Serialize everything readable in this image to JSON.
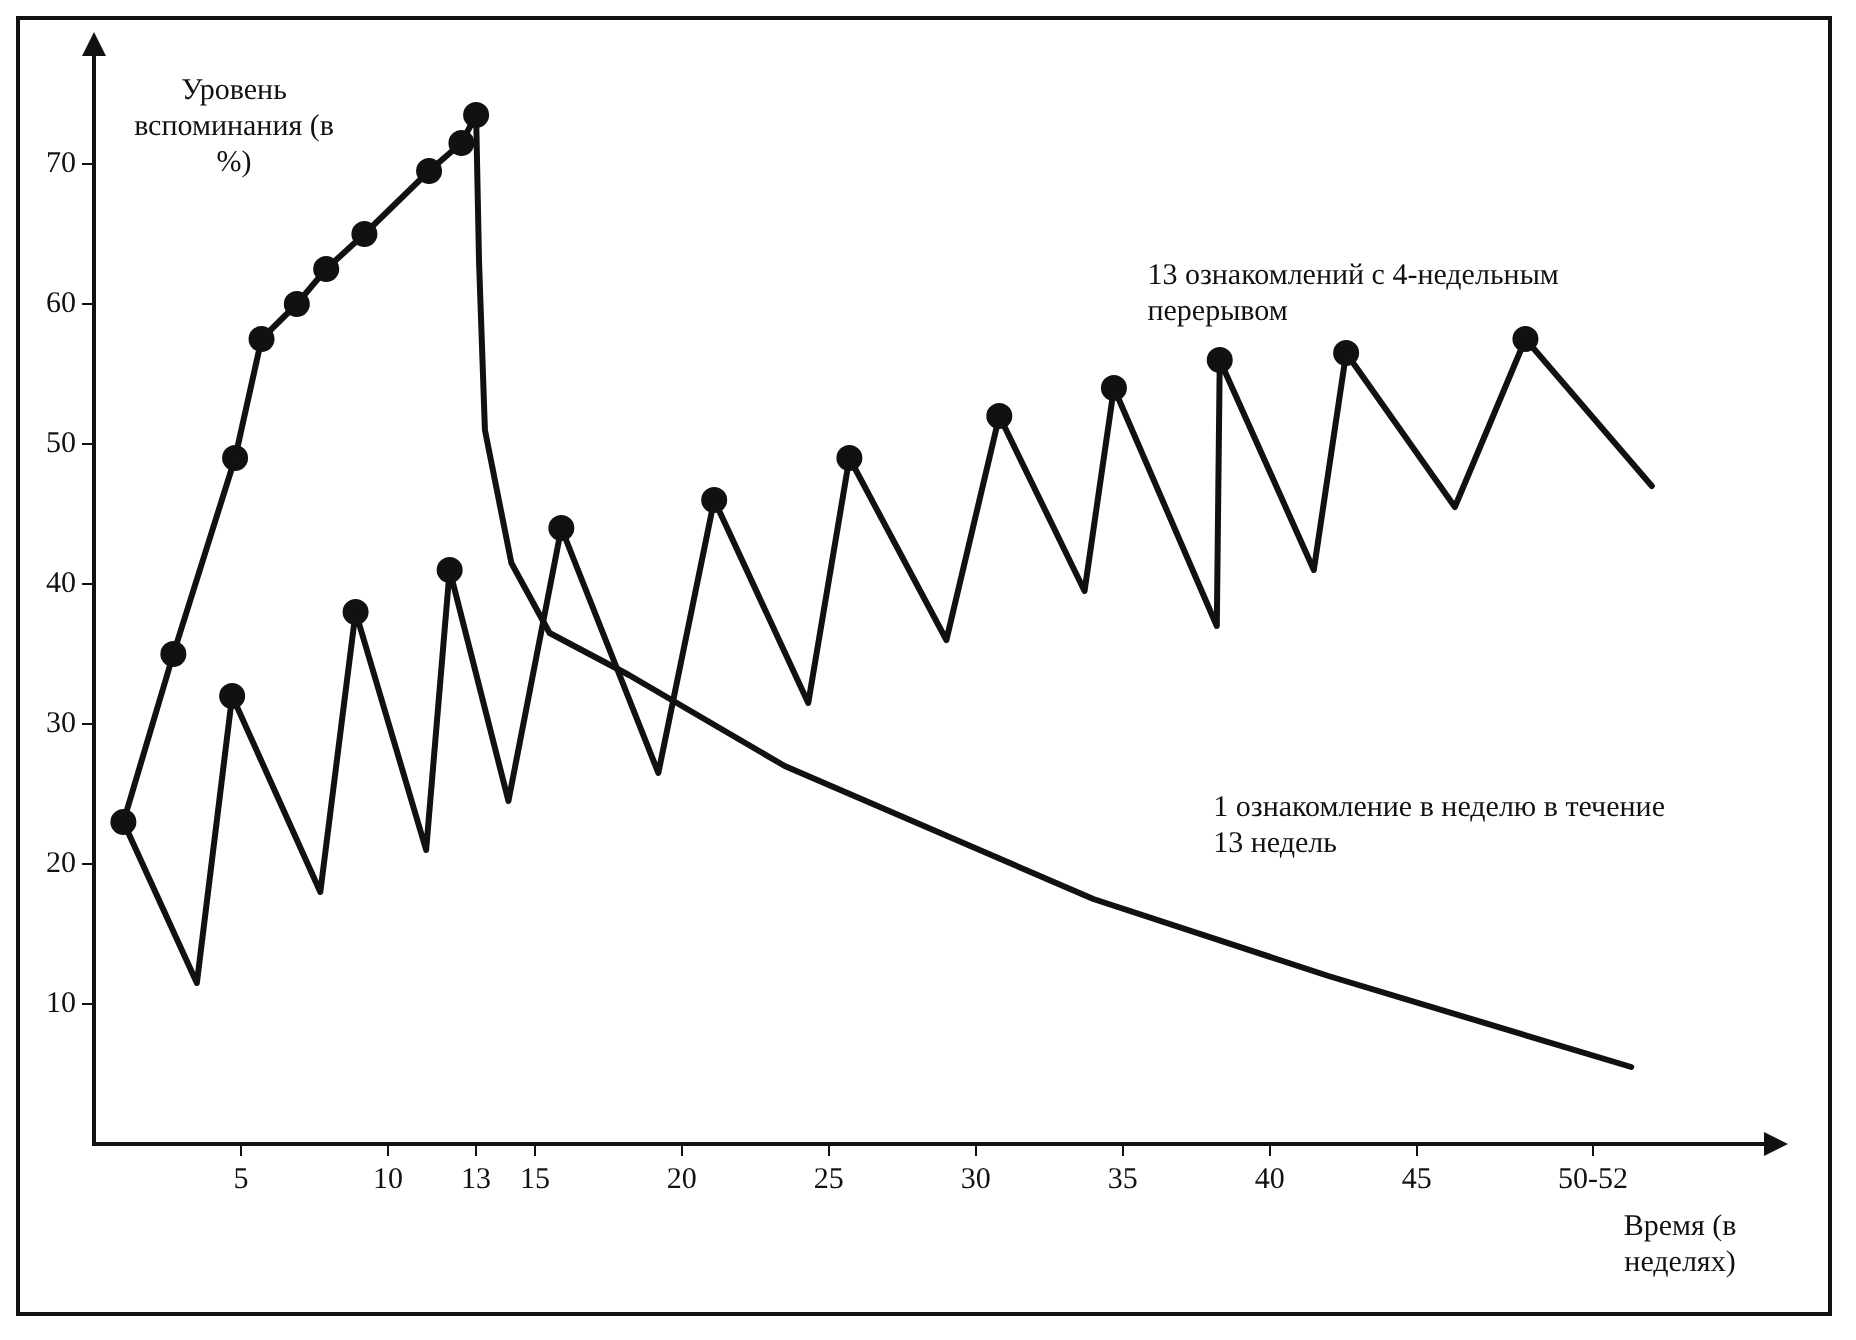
{
  "chart_data": {
    "type": "line",
    "xlabel": "Время (в неделях)",
    "ylabel": "Уровень вспоминания (в %)",
    "xlim": [
      0,
      56
    ],
    "ylim": [
      0,
      76
    ],
    "xticks": [
      5,
      10,
      13,
      15,
      20,
      25,
      30,
      35,
      40,
      45,
      {
        "value": 51,
        "label": "50-52"
      }
    ],
    "yticks": [
      10,
      20,
      30,
      40,
      50,
      60,
      70
    ],
    "grid": false,
    "legend": false,
    "series": [
      {
        "name": "13 ознакомлений с 4-недельным перерывом",
        "type": "line",
        "marker": "none",
        "color": "#111111",
        "x": [
          1,
          3.5,
          4.7,
          7.7,
          8.9,
          11.3,
          12.1,
          14.1,
          15.9,
          19.2,
          21.1,
          24.3,
          25.7,
          29,
          30.8,
          33.7,
          34.7,
          38.2,
          38.3,
          41.5,
          42.6,
          46.3,
          48.7,
          53
        ],
        "values": [
          23,
          11.5,
          32,
          18,
          38,
          21,
          41,
          24.5,
          44,
          26.5,
          46,
          31.5,
          49,
          36,
          52,
          39.5,
          54,
          37,
          56,
          41,
          56.5,
          45.5,
          57.5,
          47
        ]
      },
      {
        "type": "scatter",
        "marker": "circle",
        "color": "#111111",
        "x": [
          4.7,
          8.9,
          12.1,
          15.9,
          21.1,
          25.7,
          30.8,
          34.7,
          38.3,
          42.6,
          48.7
        ],
        "values": [
          32,
          38,
          41,
          44,
          46,
          49,
          52,
          54,
          56,
          56.5,
          57.5
        ]
      },
      {
        "name": "1 ознакомление в неделю в течение 13 недель",
        "type": "line",
        "marker": "none",
        "color": "#111111",
        "x": [
          1,
          2.7,
          4.8,
          5.7,
          6.9,
          7.9,
          9.2,
          11.4,
          12.5,
          13,
          13.1,
          13.3,
          14.2,
          15.5,
          18.2,
          23.5,
          34,
          42,
          52.3
        ],
        "values": [
          23,
          35,
          49,
          57.5,
          60,
          62.5,
          65,
          69.5,
          71.5,
          73.5,
          63,
          51,
          41.5,
          36.5,
          33.5,
          27,
          17.5,
          12,
          5.5
        ]
      },
      {
        "type": "scatter",
        "marker": "circle",
        "color": "#111111",
        "x": [
          1,
          2.7,
          4.8,
          5.7,
          6.9,
          7.9,
          9.2,
          11.4,
          12.5,
          13
        ],
        "values": [
          23,
          35,
          49,
          57.5,
          60,
          62.5,
          65,
          69.5,
          71.5,
          73.5
        ]
      }
    ]
  }
}
